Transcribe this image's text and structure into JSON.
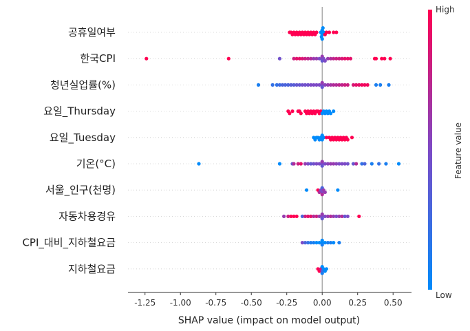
{
  "chart_data": {
    "type": "scatter",
    "subtype": "shap-beeswarm",
    "xlabel": "SHAP value (impact on model output)",
    "xlim": [
      -1.37,
      0.63
    ],
    "xticks": [
      -1.25,
      -1.0,
      -0.75,
      -0.5,
      -0.25,
      0.0,
      0.25,
      0.5
    ],
    "xtick_labels": [
      "-1.25",
      "-1.00",
      "-0.75",
      "-0.50",
      "-0.25",
      "0.00",
      "0.25",
      "0.50"
    ],
    "colorbar": {
      "title": "Feature value",
      "high_label": "High",
      "low_label": "Low",
      "high_color": "#ff0052",
      "low_color": "#008bfb"
    },
    "features": [
      {
        "name": "공휴일여부",
        "points": [
          [
            -0.23,
            1
          ],
          [
            -0.22,
            1
          ],
          [
            -0.21,
            1
          ],
          [
            -0.2,
            1
          ],
          [
            -0.19,
            1
          ],
          [
            -0.18,
            1
          ],
          [
            -0.17,
            1
          ],
          [
            -0.16,
            1
          ],
          [
            -0.15,
            1
          ],
          [
            -0.14,
            1
          ],
          [
            -0.13,
            1
          ],
          [
            -0.12,
            1
          ],
          [
            -0.11,
            1
          ],
          [
            -0.1,
            1
          ],
          [
            -0.09,
            1
          ],
          [
            -0.08,
            1
          ],
          [
            -0.07,
            1
          ],
          [
            -0.06,
            1
          ],
          [
            -0.05,
            1
          ],
          [
            -0.04,
            1
          ],
          [
            -0.01,
            0
          ],
          [
            0.0,
            0
          ],
          [
            0.01,
            0
          ],
          [
            0.0,
            0
          ],
          [
            -0.005,
            0
          ],
          [
            0.005,
            0
          ],
          [
            0.0,
            0
          ],
          [
            0.02,
            1
          ],
          [
            0.03,
            1
          ],
          [
            0.05,
            1
          ],
          [
            0.08,
            1
          ],
          [
            0.1,
            1
          ]
        ]
      },
      {
        "name": "한국CPI",
        "points": [
          [
            -1.24,
            1
          ],
          [
            -0.66,
            1
          ],
          [
            -0.3,
            0.45
          ],
          [
            -0.2,
            0.8
          ],
          [
            -0.18,
            0.9
          ],
          [
            -0.16,
            0.9
          ],
          [
            -0.14,
            0.85
          ],
          [
            -0.12,
            0.8
          ],
          [
            -0.1,
            0.75
          ],
          [
            -0.08,
            0.7
          ],
          [
            -0.06,
            0.6
          ],
          [
            -0.04,
            0.6
          ],
          [
            -0.02,
            0.5
          ],
          [
            0.0,
            0.5
          ],
          [
            0.0,
            0.4
          ],
          [
            0.0,
            0.6
          ],
          [
            0.01,
            0.5
          ],
          [
            0.02,
            0.5
          ],
          [
            0.04,
            0.6
          ],
          [
            0.06,
            0.7
          ],
          [
            0.08,
            0.75
          ],
          [
            0.1,
            0.8
          ],
          [
            0.12,
            0.8
          ],
          [
            0.14,
            0.85
          ],
          [
            0.16,
            0.9
          ],
          [
            0.18,
            0.9
          ],
          [
            0.2,
            0.9
          ],
          [
            0.37,
            1
          ],
          [
            0.38,
            1
          ],
          [
            0.42,
            1
          ],
          [
            0.44,
            1
          ],
          [
            0.48,
            1
          ]
        ]
      },
      {
        "name": "청년실업률(%)",
        "points": [
          [
            -0.45,
            0.1
          ],
          [
            -0.35,
            0.2
          ],
          [
            -0.32,
            0.2
          ],
          [
            -0.3,
            0.25
          ],
          [
            -0.28,
            0.3
          ],
          [
            -0.26,
            0.3
          ],
          [
            -0.24,
            0.3
          ],
          [
            -0.22,
            0.35
          ],
          [
            -0.2,
            0.35
          ],
          [
            -0.18,
            0.4
          ],
          [
            -0.16,
            0.4
          ],
          [
            -0.14,
            0.45
          ],
          [
            -0.12,
            0.45
          ],
          [
            -0.1,
            0.45
          ],
          [
            -0.08,
            0.5
          ],
          [
            -0.06,
            0.5
          ],
          [
            -0.04,
            0.5
          ],
          [
            -0.02,
            0.5
          ],
          [
            0.0,
            0.5
          ],
          [
            0.0,
            0.4
          ],
          [
            0.0,
            0.6
          ],
          [
            0.02,
            0.55
          ],
          [
            0.04,
            0.6
          ],
          [
            0.06,
            0.65
          ],
          [
            0.08,
            0.7
          ],
          [
            0.1,
            0.7
          ],
          [
            0.12,
            0.75
          ],
          [
            0.14,
            0.75
          ],
          [
            0.16,
            0.8
          ],
          [
            0.18,
            0.8
          ],
          [
            0.22,
            0.85
          ],
          [
            0.24,
            0.9
          ],
          [
            0.26,
            0.9
          ],
          [
            0.28,
            0.95
          ],
          [
            0.3,
            0.95
          ],
          [
            0.32,
            0.95
          ],
          [
            0.38,
            0.1
          ],
          [
            0.41,
            0.1
          ],
          [
            0.47,
            0.1
          ]
        ]
      },
      {
        "name": "요일_Thursday",
        "points": [
          [
            -0.24,
            1
          ],
          [
            -0.23,
            1
          ],
          [
            -0.21,
            1
          ],
          [
            -0.17,
            1
          ],
          [
            -0.16,
            1
          ],
          [
            -0.15,
            1
          ],
          [
            -0.12,
            1
          ],
          [
            -0.11,
            1
          ],
          [
            -0.1,
            1
          ],
          [
            -0.09,
            1
          ],
          [
            -0.08,
            1
          ],
          [
            -0.07,
            1
          ],
          [
            -0.06,
            1
          ],
          [
            -0.05,
            1
          ],
          [
            -0.04,
            1
          ],
          [
            -0.03,
            1
          ],
          [
            -0.02,
            1
          ],
          [
            -0.01,
            1
          ],
          [
            0.0,
            0
          ],
          [
            0.01,
            0
          ],
          [
            0.02,
            0
          ],
          [
            0.03,
            0
          ],
          [
            0.04,
            0
          ],
          [
            0.05,
            0
          ],
          [
            0.06,
            0
          ],
          [
            0.08,
            0
          ]
        ]
      },
      {
        "name": "요일_Tuesday",
        "points": [
          [
            -0.06,
            0
          ],
          [
            -0.05,
            0
          ],
          [
            -0.04,
            0
          ],
          [
            -0.03,
            0
          ],
          [
            -0.02,
            0
          ],
          [
            -0.01,
            0
          ],
          [
            0.0,
            0
          ],
          [
            0.0,
            0
          ],
          [
            0.01,
            0
          ],
          [
            0.03,
            1
          ],
          [
            0.05,
            1
          ],
          [
            0.06,
            1
          ],
          [
            0.07,
            1
          ],
          [
            0.08,
            1
          ],
          [
            0.09,
            1
          ],
          [
            0.1,
            1
          ],
          [
            0.11,
            1
          ],
          [
            0.12,
            1
          ],
          [
            0.13,
            1
          ],
          [
            0.14,
            1
          ],
          [
            0.15,
            1
          ],
          [
            0.16,
            1
          ],
          [
            0.17,
            1
          ],
          [
            0.18,
            1
          ],
          [
            0.21,
            1
          ]
        ]
      },
      {
        "name": "기온(°C)",
        "points": [
          [
            -0.87,
            0
          ],
          [
            -0.3,
            0
          ],
          [
            -0.21,
            0.4
          ],
          [
            -0.2,
            0.7
          ],
          [
            -0.17,
            0.8
          ],
          [
            -0.15,
            0.9
          ],
          [
            -0.12,
            0.6
          ],
          [
            -0.1,
            0.5
          ],
          [
            -0.08,
            0.4
          ],
          [
            -0.06,
            0.45
          ],
          [
            -0.04,
            0.5
          ],
          [
            -0.02,
            0.5
          ],
          [
            0.0,
            0.5
          ],
          [
            0.0,
            0.4
          ],
          [
            0.0,
            0.6
          ],
          [
            0.02,
            0.5
          ],
          [
            0.04,
            0.55
          ],
          [
            0.06,
            0.6
          ],
          [
            0.08,
            0.6
          ],
          [
            0.1,
            0.55
          ],
          [
            0.12,
            0.5
          ],
          [
            0.14,
            0.5
          ],
          [
            0.16,
            0.5
          ],
          [
            0.18,
            0.45
          ],
          [
            0.22,
            0.4
          ],
          [
            0.24,
            0.7
          ],
          [
            0.28,
            0.2
          ],
          [
            0.3,
            0.3
          ],
          [
            0.35,
            0.1
          ],
          [
            0.4,
            0.2
          ],
          [
            0.45,
            0.1
          ],
          [
            0.54,
            0.0
          ]
        ]
      },
      {
        "name": "서울_인구(천명)",
        "points": [
          [
            -0.11,
            0
          ],
          [
            -0.03,
            1
          ],
          [
            -0.02,
            0.7
          ],
          [
            -0.01,
            0.5
          ],
          [
            0.0,
            0.5
          ],
          [
            0.0,
            0.3
          ],
          [
            0.0,
            0.7
          ],
          [
            0.01,
            0.6
          ],
          [
            0.02,
            0.6
          ],
          [
            0.11,
            0
          ]
        ]
      },
      {
        "name": "자동차용경유",
        "points": [
          [
            -0.27,
            0.6
          ],
          [
            -0.24,
            0.8
          ],
          [
            -0.22,
            1
          ],
          [
            -0.2,
            1
          ],
          [
            -0.18,
            1
          ],
          [
            -0.14,
            0.3
          ],
          [
            -0.12,
            0.8
          ],
          [
            -0.1,
            0.9
          ],
          [
            -0.08,
            0.9
          ],
          [
            -0.06,
            0.7
          ],
          [
            -0.04,
            0.8
          ],
          [
            -0.02,
            0.6
          ],
          [
            0.0,
            0.5
          ],
          [
            0.0,
            0.4
          ],
          [
            0.0,
            0.6
          ],
          [
            0.02,
            0.5
          ],
          [
            0.04,
            0.6
          ],
          [
            0.06,
            0.7
          ],
          [
            0.08,
            0.6
          ],
          [
            0.1,
            0.5
          ],
          [
            0.12,
            0.6
          ],
          [
            0.14,
            0.7
          ],
          [
            0.16,
            0.4
          ],
          [
            0.18,
            0.5
          ],
          [
            0.26,
            1
          ]
        ]
      },
      {
        "name": "CPI_대비_지하철요금",
        "points": [
          [
            -0.14,
            0.5
          ],
          [
            -0.12,
            0.3
          ],
          [
            -0.1,
            0.2
          ],
          [
            -0.08,
            0.1
          ],
          [
            -0.06,
            0.1
          ],
          [
            -0.04,
            0.0
          ],
          [
            -0.02,
            0.0
          ],
          [
            0.0,
            0.0
          ],
          [
            0.0,
            0.1
          ],
          [
            0.0,
            0.0
          ],
          [
            0.02,
            0.0
          ],
          [
            0.04,
            0.1
          ],
          [
            0.06,
            0.1
          ],
          [
            0.08,
            0.0
          ],
          [
            0.12,
            0.1
          ]
        ]
      },
      {
        "name": "지하철요금",
        "points": [
          [
            -0.03,
            1
          ],
          [
            -0.02,
            1
          ],
          [
            -0.01,
            0.8
          ],
          [
            0.0,
            0.3
          ],
          [
            0.0,
            0.0
          ],
          [
            0.0,
            0.1
          ],
          [
            0.01,
            0.0
          ],
          [
            0.02,
            0.0
          ],
          [
            0.03,
            0.0
          ]
        ]
      }
    ]
  }
}
